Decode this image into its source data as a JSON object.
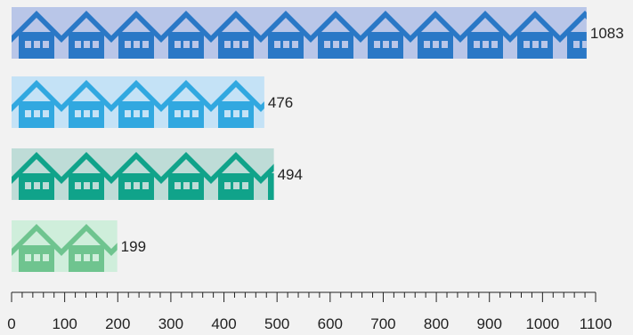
{
  "chart_data": {
    "type": "bar",
    "orientation": "horizontal",
    "pictograph": "house-icon",
    "categories": [
      "",
      "",
      "",
      ""
    ],
    "values": [
      1083,
      476,
      494,
      199
    ],
    "colors": [
      {
        "bg": "#b9c6e8",
        "fg": "#2a78c6"
      },
      {
        "bg": "#c4e2f6",
        "fg": "#31a8e0"
      },
      {
        "bg": "#bedcd7",
        "fg": "#10a38a"
      },
      {
        "bg": "#cfeedb",
        "fg": "#6fc48f"
      }
    ],
    "xlim": [
      0,
      1100
    ],
    "xticks": [
      "0",
      "100",
      "200",
      "300",
      "400",
      "500",
      "600",
      "700",
      "800",
      "900",
      "1000",
      "1100"
    ],
    "minor_tick_step": 20,
    "grid": false,
    "legend": "none",
    "title": "",
    "xlabel": "",
    "ylabel": ""
  }
}
